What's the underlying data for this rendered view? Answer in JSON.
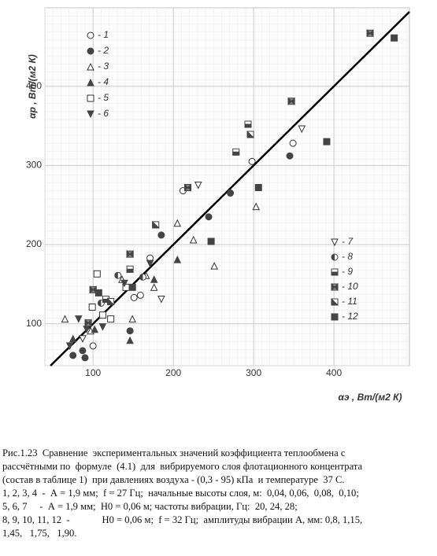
{
  "chart_data": {
    "type": "scatter",
    "y_label": "αр , Вт/(м2 К)",
    "x_label": "αэ , Вт/(м2 К)",
    "xlim": [
      40,
      494
    ],
    "ylim": [
      47,
      499
    ],
    "xticks": [
      100,
      200,
      300,
      400
    ],
    "yticks": [
      100,
      200,
      300,
      400
    ],
    "grid": true,
    "series": [
      {
        "name": "- 1",
        "marker": "circle-open",
        "color": "#333",
        "x": [
          100,
          151,
          171,
          212,
          298,
          349,
          159
        ],
        "values": [
          72,
          133,
          183,
          268,
          305,
          328,
          136
        ]
      },
      {
        "name": "- 2",
        "marker": "circle-filled",
        "color": "#444",
        "x": [
          87,
          90,
          185,
          244,
          271,
          345,
          146,
          75
        ],
        "values": [
          66,
          57,
          212,
          235,
          265,
          312,
          91,
          60
        ]
      },
      {
        "name": "- 3",
        "marker": "triangle-open",
        "color": "#333",
        "x": [
          65,
          136,
          176,
          205,
          225,
          251,
          303,
          149,
          97,
          166
        ],
        "values": [
          106,
          156,
          146,
          227,
          206,
          173,
          248,
          106,
          91,
          161
        ]
      },
      {
        "name": "- 4",
        "marker": "triangle-filled",
        "color": "#444",
        "x": [
          75,
          205,
          176,
          146,
          102
        ],
        "values": [
          81,
          181,
          156,
          79,
          93
        ]
      },
      {
        "name": "- 5",
        "marker": "square-open",
        "color": "#333",
        "x": [
          105,
          99,
          112,
          122,
          141
        ],
        "values": [
          163,
          121,
          111,
          106,
          146
        ]
      },
      {
        "name": "- 6",
        "marker": "down-filled",
        "color": "#444",
        "x": [
          71,
          92,
          112,
          139,
          82,
          171
        ],
        "values": [
          72,
          93,
          96,
          151,
          106,
          176
        ]
      },
      {
        "name": "- 7",
        "marker": "down-open",
        "color": "#333",
        "x": [
          360,
          231,
          185,
          87
        ],
        "values": [
          346,
          275,
          131,
          81
        ]
      },
      {
        "name": "- 8",
        "marker": "circle-half",
        "color": "#444",
        "x": [
          110,
          162,
          131
        ],
        "values": [
          126,
          159,
          161
        ]
      },
      {
        "name": "- 9",
        "marker": "square-half",
        "color": "#444",
        "x": [
          293,
          278,
          146,
          116
        ],
        "values": [
          352,
          317,
          169,
          131
        ]
      },
      {
        "name": "- 10",
        "marker": "bowtie",
        "color": "#444",
        "x": [
          445,
          347,
          218,
          146,
          100,
          94
        ],
        "values": [
          467,
          381,
          272,
          188,
          143,
          101
        ]
      },
      {
        "name": "- 11",
        "marker": "square-diag",
        "color": "#444",
        "x": [
          296,
          178,
          122
        ],
        "values": [
          339,
          225,
          128
        ]
      },
      {
        "name": "- 12",
        "marker": "square-filled",
        "color": "#444",
        "x": [
          475,
          391,
          306,
          247,
          149,
          107
        ],
        "values": [
          461,
          330,
          272,
          204,
          146,
          139
        ]
      }
    ]
  },
  "caption": [
    "Рис.1.23  Сравнение  экспериментальных значений коэффициента теплообмена с",
    "рассчётными по  формуле  (4.1)  для  вибрируемого слоя флотационного концентрата",
    "(состав в таблице 1)  при давлениях воздуха - (0,3 - 95) кПа  и температуре  37 С.",
    "1, 2, 3, 4  -  А = 1,9 мм;  f = 27 Гц;  начальные высоты слоя, м:  0,04, 0,06,  0,08,  0,10;",
    "5, 6, 7     -  А = 1,9 мм;  Н0 = 0,06 м; частоты вибрации, Гц:  20, 24, 28;",
    "8, 9, 10, 11, 12  -             Н0 = 0,06 м;  f = 32 Гц;  амплитуды вибрации А, мм: 0,8, 1,15,",
    "1,45,   1,75,   1,90."
  ]
}
